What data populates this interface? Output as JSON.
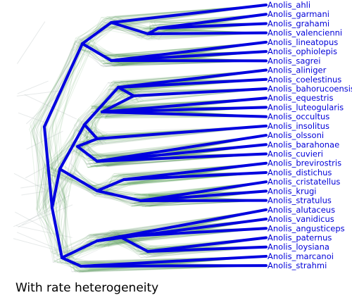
{
  "caption": "With rate heterogeneity",
  "colors": {
    "consensus_tree": "#0000e0",
    "sample_trees_green": "#2e8b2e",
    "sample_trees_gray": "#9aa9a9",
    "tip_label": "#0000d8"
  },
  "tree": {
    "tips": [
      "Anolis_ahli",
      "Anolis_garmani",
      "Anolis_grahami",
      "Anolis_valencienni",
      "Anolis_lineatopus",
      "Anolis_ophiolepis",
      "Anolis_sagrei",
      "Anolis_aliniger",
      "Anolis_coelestinus",
      "Anolis_bahorucoensis",
      "Anolis_equestris",
      "Anolis_luteogularis",
      "Anolis_occultus",
      "Anolis_insolitus",
      "Anolis_olssoni",
      "Anolis_barahonae",
      "Anolis_cuvieri",
      "Anolis_brevirostris",
      "Anolis_distichus",
      "Anolis_cristatellus",
      "Anolis_krugi",
      "Anolis_stratulus",
      "Anolis_alutaceus",
      "Anolis_vanidicus",
      "Anolis_angusticeps",
      "Anolis_paternus",
      "Anolis_loysiana",
      "Anolis_marcanoi",
      "Anolis_strahmi"
    ]
  }
}
